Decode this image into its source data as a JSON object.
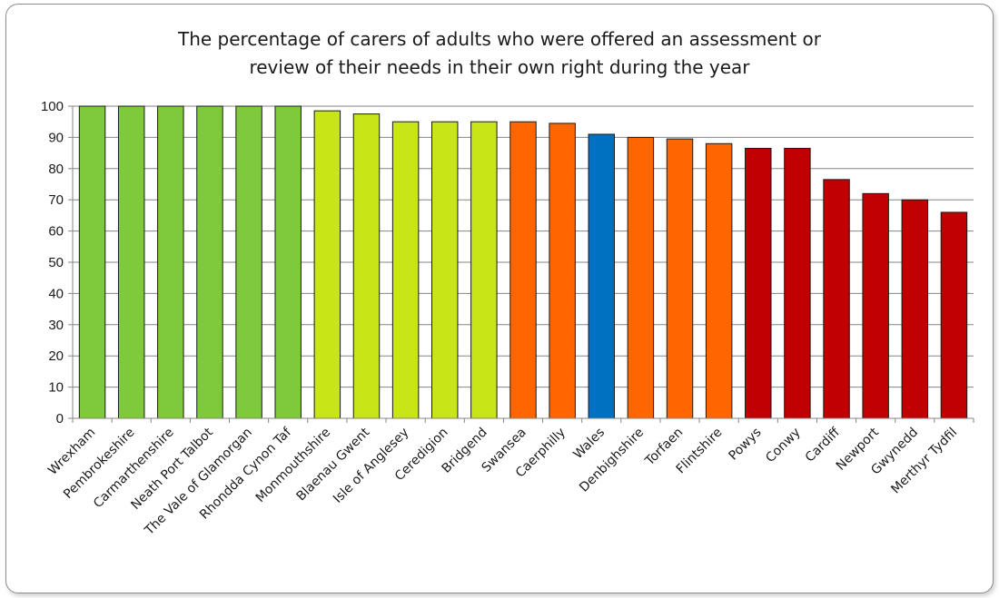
{
  "chart_data": {
    "type": "bar",
    "title_lines": [
      "The percentage of carers of adults who were offered an assessment or",
      "review of their needs in their own right during the year"
    ],
    "xlabel": "",
    "ylabel": "",
    "ylim": [
      0,
      100
    ],
    "y_ticks": [
      "0",
      "10",
      "20",
      "30",
      "40",
      "50",
      "60",
      "70",
      "80",
      "90",
      "100"
    ],
    "grid": true,
    "legend": "none",
    "categories": [
      "Wrexham",
      "Pembrokeshire",
      "Carmarthenshire",
      "Neath Port Talbot",
      "The Vale of Glamorgan",
      "Rhondda Cynon Taf",
      "Monmouthshire",
      "Blaenau Gwent",
      "Isle of Anglesey",
      "Ceredigion",
      "Bridgend",
      "Swansea",
      "Caerphilly",
      "Wales",
      "Denbighshire",
      "Torfaen",
      "Flintshire",
      "Powys",
      "Conwy",
      "Cardiff",
      "Newport",
      "Gwynedd",
      "Merthyr Tydfil"
    ],
    "values": [
      100,
      100,
      100,
      100,
      100,
      100,
      98.5,
      97.5,
      95,
      95,
      95,
      95,
      94.5,
      91,
      90,
      89.5,
      88,
      86.5,
      86.5,
      76.5,
      72,
      70,
      66
    ],
    "bar_colors": [
      "#7fca3a",
      "#7fca3a",
      "#7fca3a",
      "#7fca3a",
      "#7fca3a",
      "#7fca3a",
      "#c8e617",
      "#c8e617",
      "#c8e617",
      "#c8e617",
      "#c8e617",
      "#ff6600",
      "#ff6600",
      "#0070c0",
      "#ff6600",
      "#ff6600",
      "#ff6600",
      "#c00000",
      "#c00000",
      "#c00000",
      "#c00000",
      "#c00000",
      "#c00000"
    ]
  }
}
